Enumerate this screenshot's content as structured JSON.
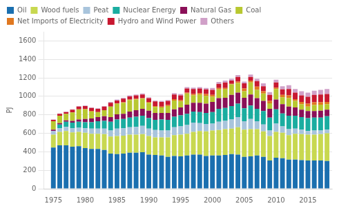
{
  "chart_data": {
    "type": "bar",
    "stacked": true,
    "ylabel": "PJ",
    "x": [
      1975,
      1976,
      1977,
      1978,
      1979,
      1980,
      1981,
      1982,
      1983,
      1984,
      1985,
      1986,
      1987,
      1988,
      1989,
      1990,
      1991,
      1992,
      1993,
      1994,
      1995,
      1996,
      1997,
      1998,
      1999,
      2000,
      2001,
      2002,
      2003,
      2004,
      2005,
      2006,
      2007,
      2008,
      2009,
      2010,
      2011,
      2012,
      2013,
      2014,
      2015,
      2016,
      2017,
      2018
    ],
    "series": [
      {
        "name": "Oil",
        "color": "#1a6faf",
        "values": [
          445,
          470,
          470,
          455,
          460,
          440,
          430,
          430,
          420,
          380,
          375,
          380,
          390,
          390,
          395,
          370,
          365,
          360,
          345,
          355,
          350,
          360,
          370,
          370,
          355,
          360,
          360,
          365,
          375,
          370,
          345,
          350,
          360,
          345,
          305,
          335,
          330,
          315,
          315,
          310,
          305,
          305,
          305,
          300
        ]
      },
      {
        "name": "Wood fuels",
        "color": "#c8d850",
        "values": [
          140,
          145,
          155,
          155,
          155,
          165,
          165,
          165,
          170,
          185,
          195,
          195,
          195,
          195,
          195,
          200,
          190,
          195,
          210,
          225,
          235,
          235,
          245,
          255,
          265,
          270,
          275,
          280,
          275,
          295,
          295,
          295,
          285,
          275,
          265,
          280,
          275,
          265,
          280,
          280,
          280,
          280,
          285,
          300
        ]
      },
      {
        "name": "Peat",
        "color": "#a8c4dc",
        "values": [
          40,
          40,
          45,
          45,
          45,
          50,
          55,
          55,
          60,
          65,
          80,
          80,
          80,
          85,
          90,
          80,
          80,
          75,
          75,
          85,
          90,
          95,
          100,
          85,
          80,
          75,
          90,
          90,
          100,
          110,
          90,
          110,
          85,
          75,
          60,
          90,
          70,
          65,
          55,
          50,
          40,
          45,
          40,
          40
        ]
      },
      {
        "name": "Nuclear Energy",
        "color": "#1aada0",
        "values": [
          0,
          40,
          55,
          60,
          65,
          65,
          70,
          80,
          85,
          95,
          100,
          100,
          105,
          110,
          110,
          115,
          110,
          120,
          115,
          115,
          120,
          120,
          120,
          120,
          120,
          125,
          140,
          140,
          145,
          145,
          140,
          145,
          135,
          145,
          140,
          155,
          140,
          145,
          140,
          135,
          140,
          140,
          140,
          145
        ]
      },
      {
        "name": "Natural Gas",
        "color": "#8b1058",
        "values": [
          15,
          15,
          15,
          20,
          25,
          35,
          40,
          45,
          50,
          50,
          55,
          55,
          65,
          70,
          75,
          80,
          75,
          70,
          75,
          80,
          85,
          100,
          95,
          100,
          100,
          110,
          115,
          110,
          120,
          120,
          115,
          120,
          115,
          110,
          95,
          105,
          100,
          100,
          90,
          80,
          75,
          70,
          75,
          70
        ]
      },
      {
        "name": "Coal",
        "color": "#b8c830",
        "values": [
          90,
          80,
          70,
          90,
          110,
          105,
          75,
          55,
          65,
          115,
          115,
          120,
          125,
          115,
          110,
          85,
          65,
          60,
          75,
          95,
          65,
          120,
          80,
          90,
          85,
          55,
          95,
          90,
          115,
          105,
          70,
          130,
          90,
          80,
          60,
          115,
          75,
          90,
          70,
          60,
          50,
          65,
          65,
          60
        ]
      },
      {
        "name": "Net Imports of Electricity",
        "color": "#e07820",
        "values": [
          0,
          0,
          0,
          0,
          0,
          5,
          5,
          0,
          0,
          0,
          5,
          5,
          5,
          10,
          5,
          10,
          10,
          10,
          10,
          15,
          15,
          10,
          15,
          15,
          20,
          20,
          15,
          15,
          5,
          15,
          30,
          20,
          35,
          25,
          25,
          15,
          25,
          30,
          20,
          25,
          30,
          30,
          25,
          25
        ]
      },
      {
        "name": "Hydro and Wind Power",
        "color": "#c81830",
        "values": [
          15,
          20,
          20,
          30,
          30,
          30,
          35,
          35,
          40,
          40,
          30,
          40,
          35,
          35,
          40,
          40,
          50,
          50,
          45,
          50,
          50,
          45,
          55,
          50,
          50,
          55,
          45,
          60,
          35,
          50,
          55,
          40,
          60,
          55,
          65,
          55,
          60,
          70,
          70,
          70,
          75,
          80,
          85,
          85
        ]
      },
      {
        "name": "Others",
        "color": "#d0a0c8",
        "values": [
          5,
          5,
          5,
          5,
          5,
          5,
          5,
          5,
          5,
          10,
          10,
          10,
          10,
          10,
          10,
          10,
          10,
          10,
          10,
          15,
          15,
          15,
          15,
          15,
          15,
          20,
          20,
          20,
          20,
          20,
          20,
          25,
          25,
          30,
          30,
          30,
          35,
          40,
          40,
          45,
          45,
          45,
          50,
          55
        ]
      }
    ],
    "xlim": [
      1973.5,
      2018.8
    ],
    "xticks": [
      1975,
      1980,
      1985,
      1990,
      1995,
      2000,
      2005,
      2010,
      2015
    ],
    "ylim": [
      0,
      1700
    ],
    "yticks": [
      0,
      200,
      400,
      600,
      800,
      1000,
      1200,
      1400,
      1600
    ],
    "grid": true,
    "legend": "upper left"
  }
}
